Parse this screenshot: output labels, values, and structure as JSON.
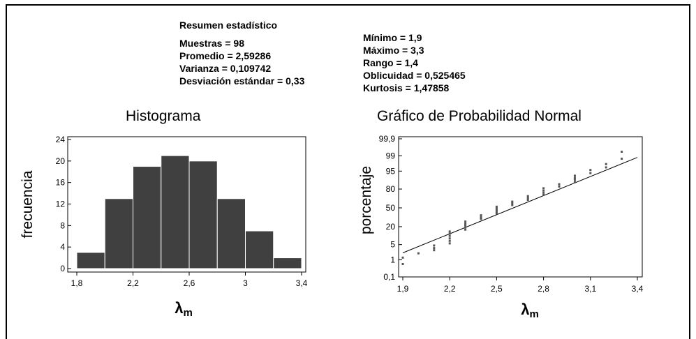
{
  "summary": {
    "heading": "Resumen estadístico",
    "left": [
      "Muestras = 98",
      "Promedio = 2,59286",
      "Varianza = 0,109742",
      "Desviación estándar = 0,33"
    ],
    "right": [
      "Mínimo = 1,9",
      "Máximo = 3,3",
      "Rango = 1,4",
      "Oblicuidad = 0,525465",
      "Kurtosis = 1,47858"
    ]
  },
  "colors": {
    "bar": "#404040",
    "axis": "#000000",
    "points": "#555555"
  },
  "chart_data": [
    {
      "type": "bar",
      "title": "Histograma",
      "ylabel": "frecuencia",
      "xlabel": "λm",
      "bin_edges": [
        1.8,
        2.0,
        2.2,
        2.4,
        2.6,
        2.8,
        3.0,
        3.2,
        3.4
      ],
      "values": [
        3,
        13,
        19,
        21,
        20,
        13,
        7,
        2
      ],
      "xlim": [
        1.8,
        3.4
      ],
      "ylim": [
        0,
        24
      ],
      "xticks": [
        1.8,
        2.2,
        2.6,
        3.0,
        3.4
      ],
      "xtick_labels": [
        "1,8",
        "2,2",
        "2,6",
        "3",
        "3,4"
      ],
      "yticks": [
        0,
        4,
        8,
        12,
        16,
        20,
        24
      ],
      "ytick_labels": [
        "0",
        "4",
        "8",
        "12",
        "16",
        "20",
        "24"
      ]
    },
    {
      "type": "scatter",
      "title": "Gráfico de Probabilidad Normal",
      "ylabel": "porcentaje",
      "xlabel": "λm",
      "xlim": [
        1.9,
        3.4
      ],
      "xticks": [
        1.9,
        2.2,
        2.5,
        2.8,
        3.1,
        3.4
      ],
      "xtick_labels": [
        "1,9",
        "2,2",
        "2,5",
        "2,8",
        "3,1",
        "3,4"
      ],
      "yscale": "normal-probability",
      "yticks": [
        0.1,
        1,
        5,
        20,
        50,
        80,
        95,
        99,
        99.9
      ],
      "ytick_labels": [
        "0,1",
        "1",
        "5",
        "20",
        "50",
        "80",
        "95",
        "99",
        "99,9"
      ],
      "points": [
        {
          "x": 1.9,
          "y": 0.6
        },
        {
          "x": 1.9,
          "y": 1.3
        },
        {
          "x": 2.0,
          "y": 2.1
        },
        {
          "x": 2.1,
          "y": 2.9
        },
        {
          "x": 2.1,
          "y": 3.6
        },
        {
          "x": 2.1,
          "y": 4.6
        },
        {
          "x": 2.2,
          "y": 5.6
        },
        {
          "x": 2.2,
          "y": 7.0
        },
        {
          "x": 2.2,
          "y": 8.6
        },
        {
          "x": 2.2,
          "y": 10.5
        },
        {
          "x": 2.2,
          "y": 12.5
        },
        {
          "x": 2.2,
          "y": 14.5
        },
        {
          "x": 2.3,
          "y": 16.5
        },
        {
          "x": 2.3,
          "y": 19
        },
        {
          "x": 2.3,
          "y": 21.5
        },
        {
          "x": 2.3,
          "y": 24
        },
        {
          "x": 2.3,
          "y": 27
        },
        {
          "x": 2.4,
          "y": 31
        },
        {
          "x": 2.4,
          "y": 34
        },
        {
          "x": 2.4,
          "y": 37
        },
        {
          "x": 2.5,
          "y": 40
        },
        {
          "x": 2.5,
          "y": 43
        },
        {
          "x": 2.5,
          "y": 46
        },
        {
          "x": 2.5,
          "y": 49
        },
        {
          "x": 2.5,
          "y": 52
        },
        {
          "x": 2.6,
          "y": 55
        },
        {
          "x": 2.6,
          "y": 58
        },
        {
          "x": 2.6,
          "y": 61
        },
        {
          "x": 2.7,
          "y": 64
        },
        {
          "x": 2.7,
          "y": 67
        },
        {
          "x": 2.7,
          "y": 70
        },
        {
          "x": 2.8,
          "y": 72
        },
        {
          "x": 2.8,
          "y": 75
        },
        {
          "x": 2.8,
          "y": 78
        },
        {
          "x": 2.8,
          "y": 81
        },
        {
          "x": 2.9,
          "y": 83
        },
        {
          "x": 2.9,
          "y": 85.5
        },
        {
          "x": 3.0,
          "y": 87.5
        },
        {
          "x": 3.0,
          "y": 89.5
        },
        {
          "x": 3.0,
          "y": 91
        },
        {
          "x": 3.0,
          "y": 92.5
        },
        {
          "x": 3.1,
          "y": 94
        },
        {
          "x": 3.1,
          "y": 95.5
        },
        {
          "x": 3.2,
          "y": 96.5
        },
        {
          "x": 3.2,
          "y": 97.5
        },
        {
          "x": 3.3,
          "y": 98.6
        },
        {
          "x": 3.3,
          "y": 99.4
        }
      ],
      "fit_line": [
        {
          "x": 1.9,
          "y": 2.2
        },
        {
          "x": 3.4,
          "y": 98.8
        }
      ]
    }
  ]
}
